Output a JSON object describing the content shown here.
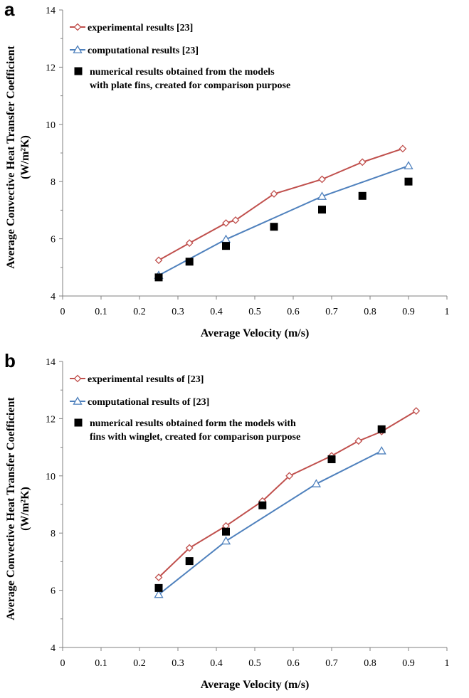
{
  "chart_data": [
    {
      "panel_label": "a",
      "type": "line",
      "xlabel": "Average Velocity (m/s)",
      "ylabel_line1": "Average Convective Heat Transfer Coefficient",
      "ylabel_line2": "(W/m²K)",
      "xlim": [
        0,
        1
      ],
      "ylim": [
        4,
        14
      ],
      "xticks": [
        "0",
        "0.1",
        "0.2",
        "0.3",
        "0.4",
        "0.5",
        "0.6",
        "0.7",
        "0.8",
        "0.9",
        "1"
      ],
      "yticks": [
        "4",
        "6",
        "8",
        "10",
        "12",
        "14"
      ],
      "grid": false,
      "legend_position": "top-left",
      "series": [
        {
          "name": "experimental results [23]",
          "marker": "diamond",
          "color": "#c0504d",
          "x": [
            0.25,
            0.33,
            0.425,
            0.45,
            0.55,
            0.675,
            0.78,
            0.885
          ],
          "y": [
            5.25,
            5.85,
            6.55,
            6.65,
            7.57,
            8.08,
            8.68,
            9.15
          ]
        },
        {
          "name": "computational results [23]",
          "marker": "triangle",
          "color": "#4f81bd",
          "x": [
            0.25,
            0.425,
            0.675,
            0.9
          ],
          "y": [
            4.72,
            5.98,
            7.48,
            8.55
          ]
        },
        {
          "name_line1": "numerical results obtained from the models",
          "name_line2": "with plate fins, created for comparison purpose",
          "marker": "square",
          "color": "#000000",
          "x": [
            0.25,
            0.33,
            0.425,
            0.55,
            0.675,
            0.78,
            0.9
          ],
          "y": [
            4.65,
            5.2,
            5.75,
            6.42,
            7.02,
            7.5,
            8.0
          ]
        }
      ]
    },
    {
      "panel_label": "b",
      "type": "line",
      "xlabel": "Average Velocity (m/s)",
      "ylabel_line1": "Average Convective Heat Transfer Coefficient",
      "ylabel_line2": "(W/m²K)",
      "xlim": [
        0,
        1
      ],
      "ylim": [
        4,
        14
      ],
      "xticks": [
        "0",
        "0.1",
        "0.2",
        "0.3",
        "0.4",
        "0.5",
        "0.6",
        "0.7",
        "0.8",
        "0.9",
        "1"
      ],
      "yticks": [
        "4",
        "6",
        "8",
        "10",
        "12",
        "14"
      ],
      "grid": false,
      "legend_position": "top-left",
      "series": [
        {
          "name": "experimental results of [23]",
          "marker": "diamond",
          "color": "#c0504d",
          "x": [
            0.25,
            0.33,
            0.425,
            0.52,
            0.59,
            0.7,
            0.77,
            0.83,
            0.92
          ],
          "y": [
            6.45,
            7.48,
            8.25,
            9.12,
            10.0,
            10.7,
            11.22,
            11.55,
            12.27
          ]
        },
        {
          "name": "computational results of [23]",
          "marker": "triangle",
          "color": "#4f81bd",
          "x": [
            0.25,
            0.425,
            0.66,
            0.83
          ],
          "y": [
            5.85,
            7.72,
            9.72,
            10.87
          ]
        },
        {
          "name_line1": "numerical results obtained form the models with",
          "name_line2": "fins with winglet, created for comparison purpose",
          "marker": "square",
          "color": "#000000",
          "x": [
            0.25,
            0.33,
            0.425,
            0.52,
            0.7,
            0.83
          ],
          "y": [
            6.08,
            7.02,
            8.05,
            8.97,
            10.58,
            11.63
          ]
        }
      ]
    }
  ]
}
